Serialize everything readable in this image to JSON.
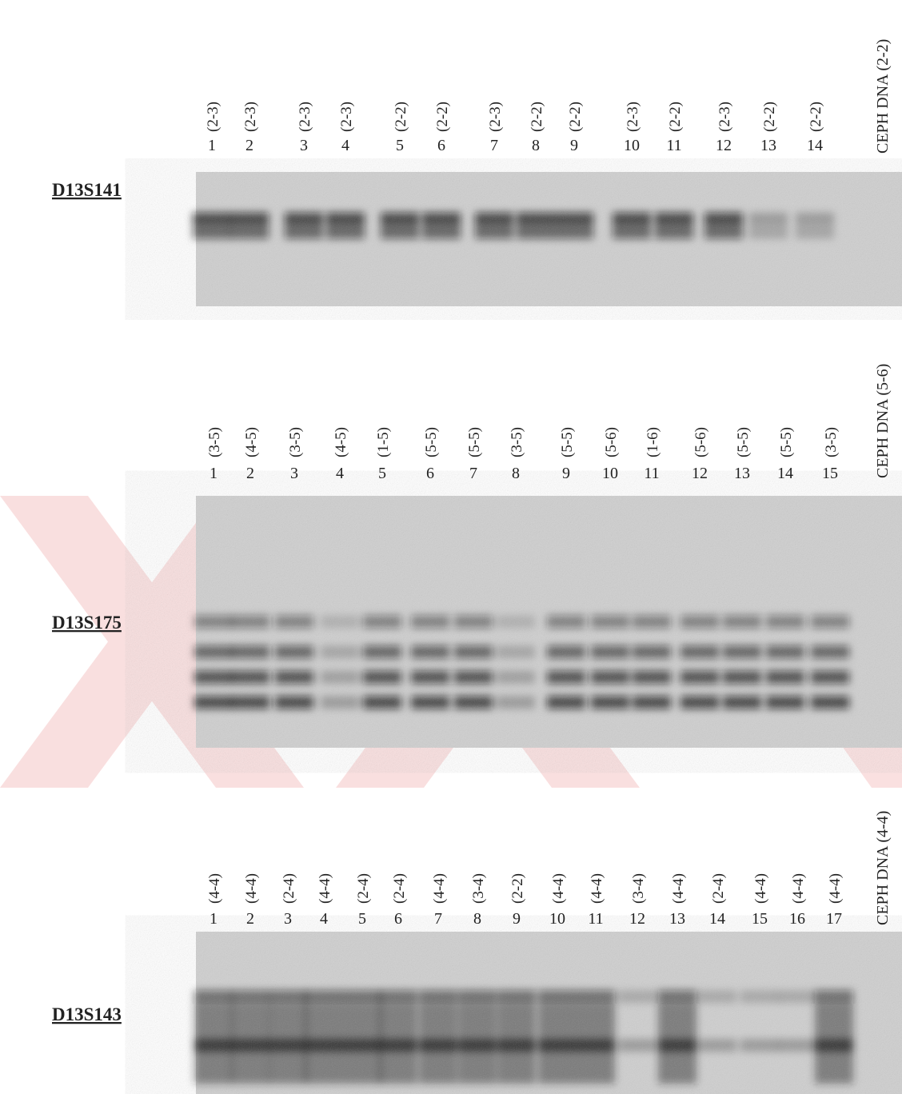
{
  "panels": [
    {
      "marker": "D13S141",
      "ceph": "CEPH DNA (2-2)",
      "lanes": [
        {
          "number": "1",
          "genotype": "(2-3)"
        },
        {
          "number": "2",
          "genotype": "(2-3)"
        },
        {
          "number": "3",
          "genotype": "(2-3)"
        },
        {
          "number": "4",
          "genotype": "(2-3)"
        },
        {
          "number": "5",
          "genotype": "(2-2)"
        },
        {
          "number": "6",
          "genotype": "(2-2)"
        },
        {
          "number": "7",
          "genotype": "(2-3)"
        },
        {
          "number": "8",
          "genotype": "(2-2)"
        },
        {
          "number": "9",
          "genotype": "(2-2)"
        },
        {
          "number": "10",
          "genotype": "(2-3)"
        },
        {
          "number": "11",
          "genotype": "(2-2)"
        },
        {
          "number": "12",
          "genotype": "(2-3)"
        },
        {
          "number": "13",
          "genotype": "(2-2)"
        },
        {
          "number": "14",
          "genotype": "(2-2)"
        }
      ]
    },
    {
      "marker": "D13S175",
      "ceph": "CEPH DNA (5-6)",
      "lanes": [
        {
          "number": "1",
          "genotype": "(3-5)"
        },
        {
          "number": "2",
          "genotype": "(4-5)"
        },
        {
          "number": "3",
          "genotype": "(3-5)"
        },
        {
          "number": "4",
          "genotype": "(4-5)"
        },
        {
          "number": "5",
          "genotype": "(1-5)"
        },
        {
          "number": "6",
          "genotype": "(5-5)"
        },
        {
          "number": "7",
          "genotype": "(5-5)"
        },
        {
          "number": "8",
          "genotype": "(3-5)"
        },
        {
          "number": "9",
          "genotype": "(5-5)"
        },
        {
          "number": "10",
          "genotype": "(5-6)"
        },
        {
          "number": "11",
          "genotype": "(1-6)"
        },
        {
          "number": "12",
          "genotype": "(5-6)"
        },
        {
          "number": "13",
          "genotype": "(5-5)"
        },
        {
          "number": "14",
          "genotype": "(5-5)"
        },
        {
          "number": "15",
          "genotype": "(3-5)"
        }
      ]
    },
    {
      "marker": "D13S143",
      "ceph": "CEPH DNA (4-4)",
      "lanes": [
        {
          "number": "1",
          "genotype": "(4-4)"
        },
        {
          "number": "2",
          "genotype": "(4-4)"
        },
        {
          "number": "3",
          "genotype": "(2-4)"
        },
        {
          "number": "4",
          "genotype": "(4-4)"
        },
        {
          "number": "5",
          "genotype": "(2-4)"
        },
        {
          "number": "6",
          "genotype": "(2-4)"
        },
        {
          "number": "7",
          "genotype": "(4-4)"
        },
        {
          "number": "8",
          "genotype": "(3-4)"
        },
        {
          "number": "9",
          "genotype": "(2-2)"
        },
        {
          "number": "10",
          "genotype": "(4-4)"
        },
        {
          "number": "11",
          "genotype": "(4-4)"
        },
        {
          "number": "12",
          "genotype": "(3-4)"
        },
        {
          "number": "13",
          "genotype": "(4-4)"
        },
        {
          "number": "14",
          "genotype": "(2-4)"
        },
        {
          "number": "15",
          "genotype": "(4-4)"
        },
        {
          "number": "16",
          "genotype": "(4-4)"
        },
        {
          "number": "17",
          "genotype": "(4-4)"
        }
      ]
    }
  ]
}
